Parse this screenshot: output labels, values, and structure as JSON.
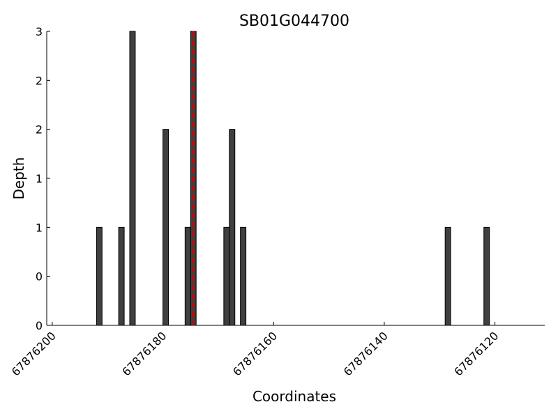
{
  "chart_data": {
    "type": "bar",
    "title": "SB01G044700",
    "x_label": "Coordinates",
    "y_label": "Depth",
    "x": [
      67876191.5,
      67876187.5,
      67876185.5,
      67876179.5,
      67876175.5,
      67876174.5,
      67876168.5,
      67876167.5,
      67876165.5,
      67876128.5,
      67876121.5
    ],
    "values": [
      1,
      1,
      3,
      2,
      1,
      3,
      1,
      2,
      1,
      1,
      1
    ],
    "bar_width": 1,
    "color": "#404040",
    "marker_x": 67876174.5,
    "marker_color": "#cc0000",
    "xlim": [
      67876201,
      67876111
    ],
    "xticks": [
      67876200,
      67876180,
      67876160,
      67876140,
      67876120
    ],
    "ylim": [
      0,
      3
    ],
    "yticks": [
      0,
      {
        "value": 0.5,
        "label": "0"
      },
      1,
      {
        "value": 1.5,
        "label": "1"
      },
      2,
      {
        "value": 2.5,
        "label": "2"
      },
      3
    ],
    "grid": false
  }
}
